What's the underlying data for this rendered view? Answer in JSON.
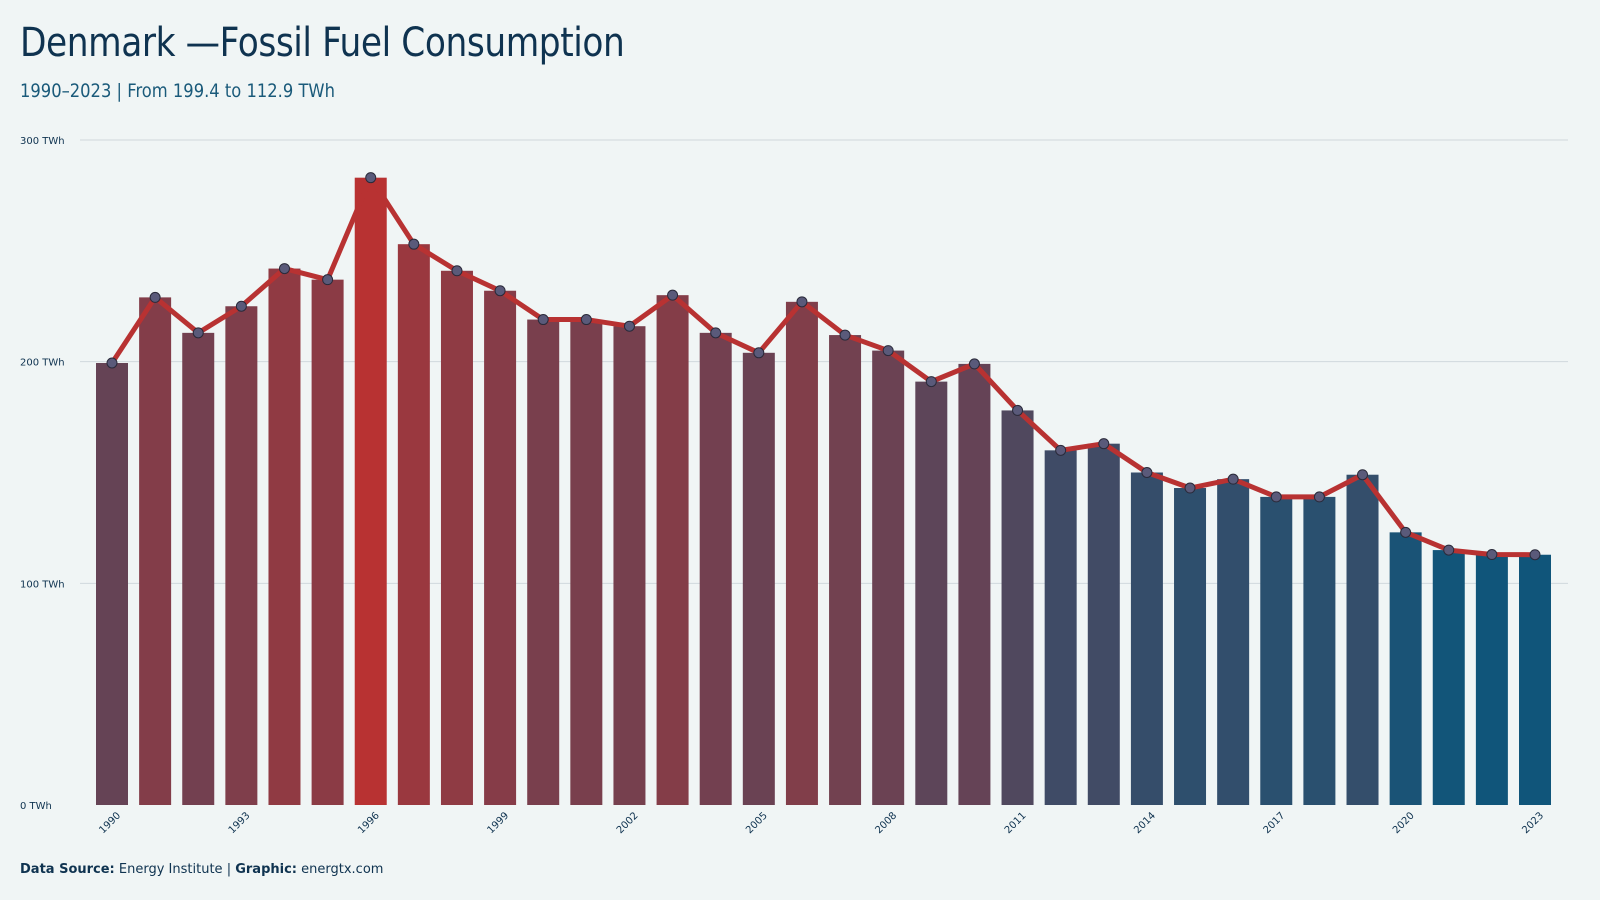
{
  "title": "Denmark —Fossil Fuel Consumption",
  "subtitle": "1990–2023 | From 199.4 to 112.9 TWh",
  "footer": {
    "source_label": "Data Source:",
    "source_value": "Energy Institute",
    "separator": "|",
    "graphic_label": "Graphic:",
    "graphic_value": "energtx.com"
  },
  "colors": {
    "background": "#f0f5f5",
    "line": "#b83232",
    "marker": "#5a5a7a",
    "high": "#b83232",
    "low": "#10557a",
    "grid": "#d0d8dc"
  },
  "chart_data": {
    "type": "bar",
    "title": "Denmark —Fossil Fuel Consumption",
    "subtitle": "1990–2023 | From 199.4 to 112.9 TWh",
    "xlabel": "",
    "ylabel": "",
    "ylim": [
      0,
      300
    ],
    "y_ticks": [
      0,
      100,
      200,
      300
    ],
    "y_tick_labels": [
      "0 TWh",
      "100 TWh",
      "200 TWh",
      "300 TWh"
    ],
    "x_tick_labels": [
      "1990",
      "1993",
      "1996",
      "1999",
      "2002",
      "2005",
      "2008",
      "2011",
      "2014",
      "2017",
      "2020",
      "2023"
    ],
    "grid": true,
    "categories": [
      "1990",
      "1991",
      "1992",
      "1993",
      "1994",
      "1995",
      "1996",
      "1997",
      "1998",
      "1999",
      "2000",
      "2001",
      "2002",
      "2003",
      "2004",
      "2005",
      "2006",
      "2007",
      "2008",
      "2009",
      "2010",
      "2011",
      "2012",
      "2013",
      "2014",
      "2015",
      "2016",
      "2017",
      "2018",
      "2019",
      "2020",
      "2021",
      "2022",
      "2023"
    ],
    "values": [
      199.4,
      229,
      213,
      225,
      242,
      237,
      283,
      253,
      241,
      232,
      219,
      219,
      216,
      230,
      213,
      204,
      227,
      212,
      205,
      191,
      199,
      178,
      160,
      163,
      150,
      143,
      147,
      139,
      139,
      149,
      123,
      115,
      113,
      112.9
    ],
    "overlay": "line with markers"
  }
}
